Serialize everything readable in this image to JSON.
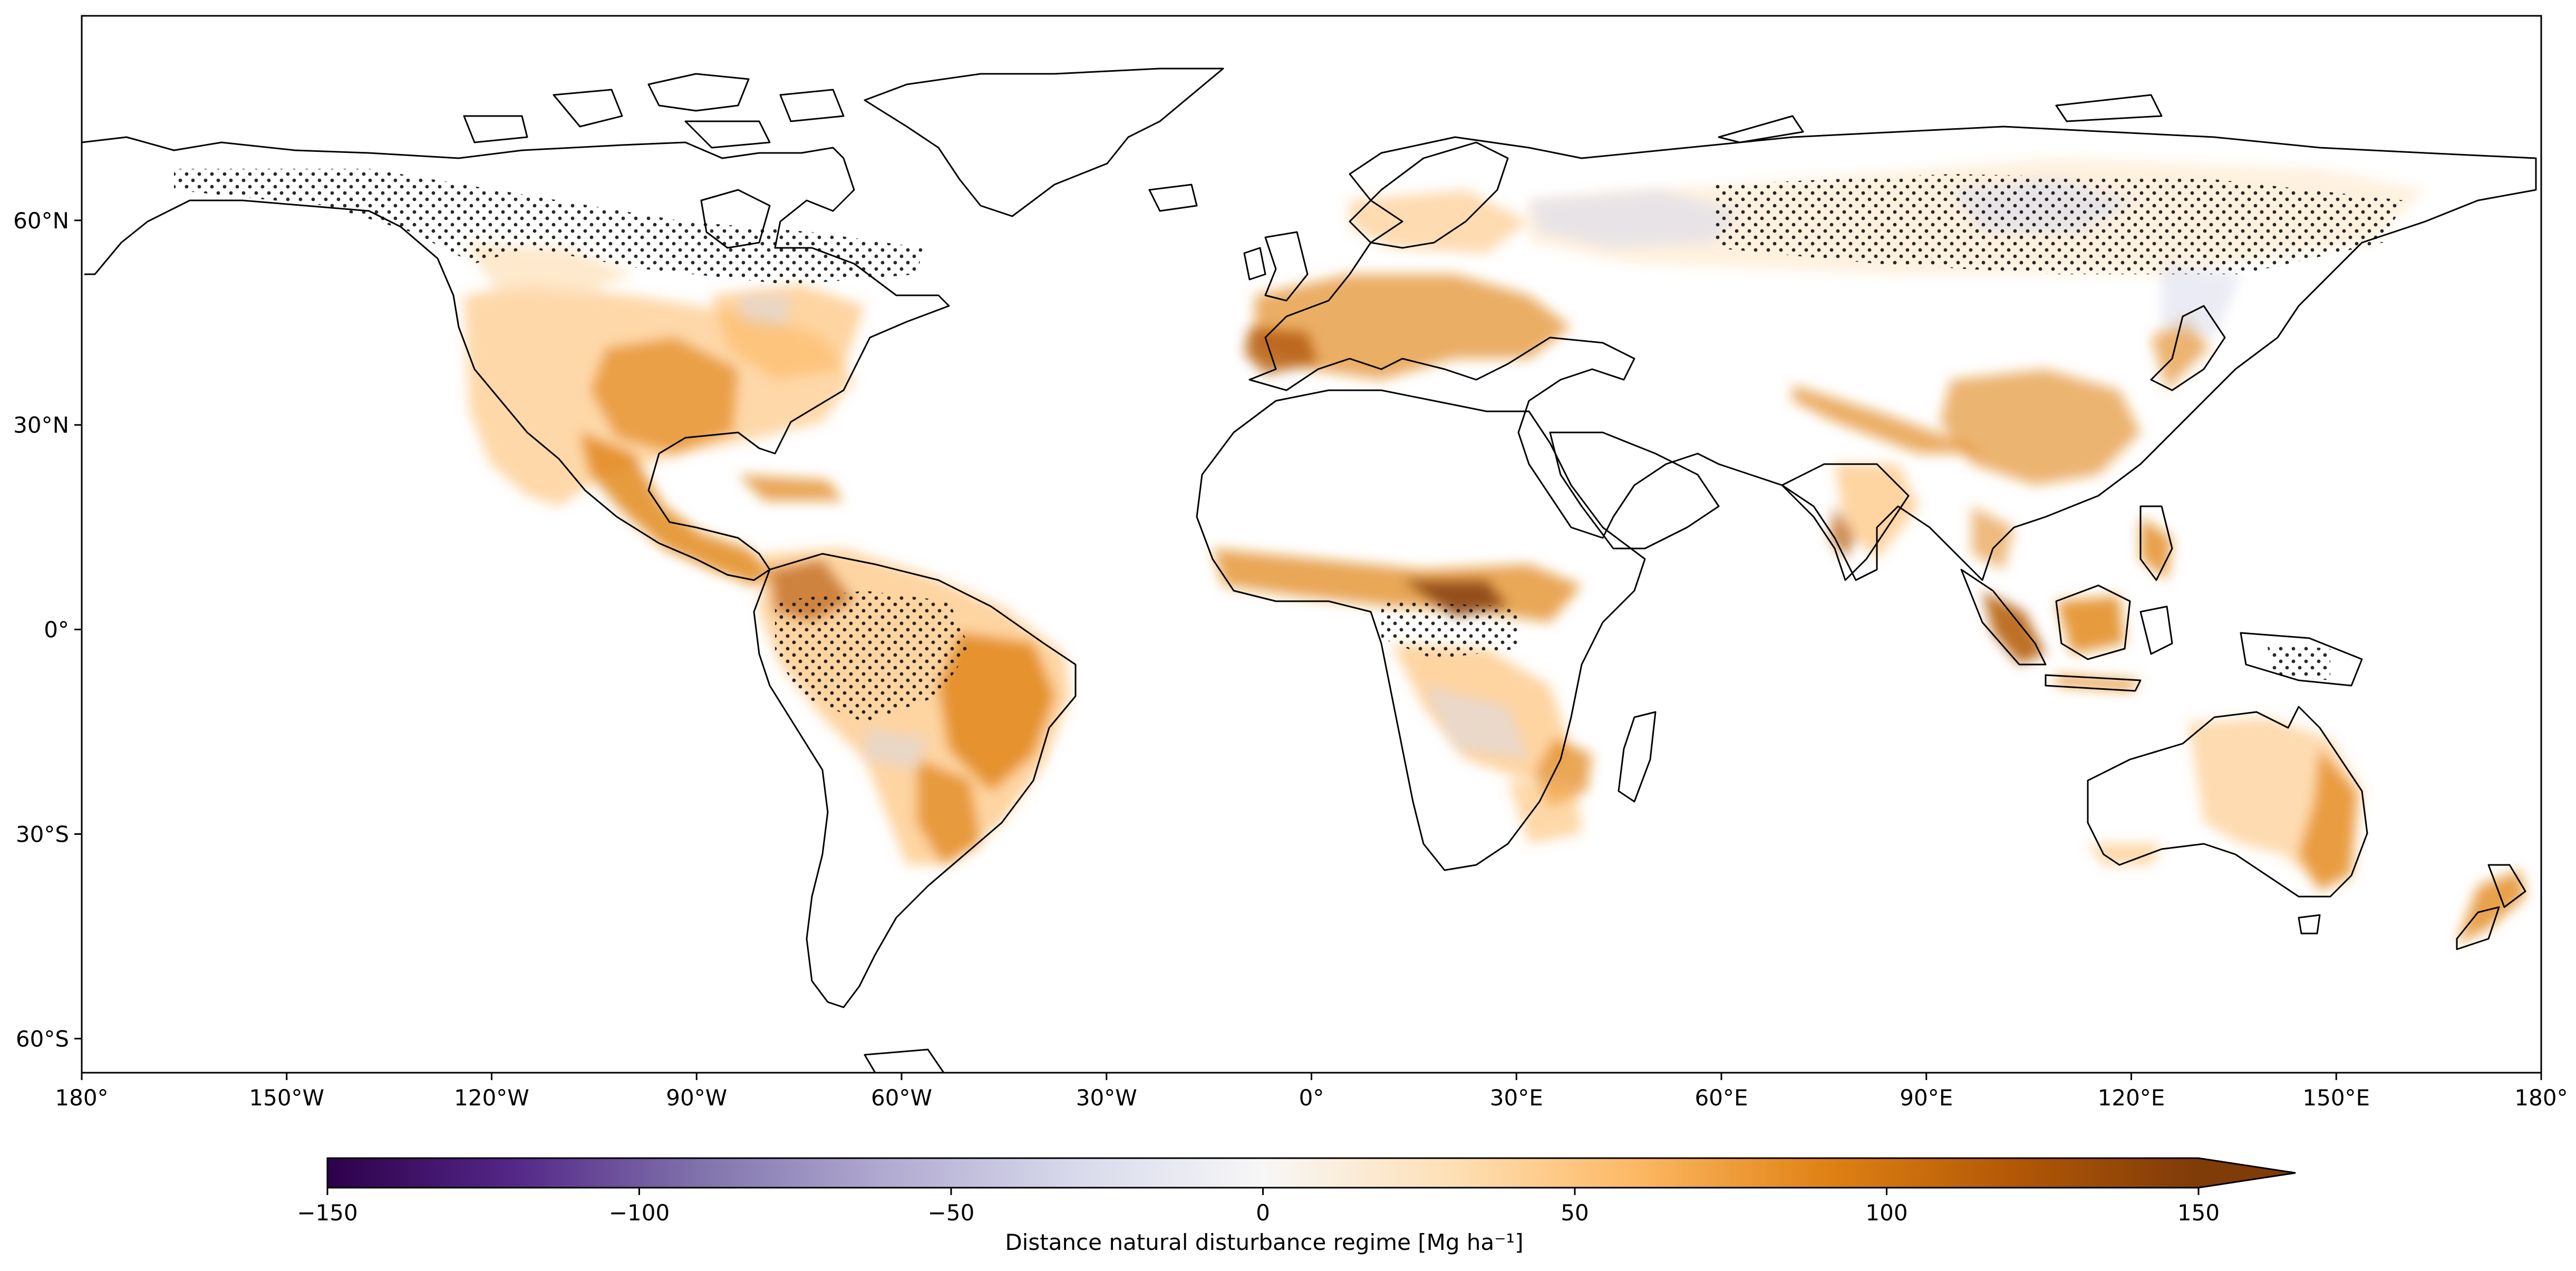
{
  "map": {
    "projection": "PlateCarree",
    "lon_ticks": [
      "180°",
      "150°W",
      "120°W",
      "90°W",
      "60°W",
      "30°W",
      "0°",
      "30°E",
      "60°E",
      "90°E",
      "120°E",
      "150°E",
      "180°"
    ],
    "lat_ticks": [
      "60°N",
      "30°N",
      "0°",
      "30°S",
      "60°S"
    ],
    "lon_values": [
      -180,
      -150,
      -120,
      -90,
      -60,
      -30,
      0,
      30,
      60,
      90,
      120,
      150,
      180
    ],
    "lat_values": [
      60,
      30,
      0,
      -30,
      -60
    ],
    "lat_range": [
      -65,
      90
    ],
    "lon_range": [
      -180,
      180
    ],
    "hatching": "stippled dots over regions of low agreement (boreal North America, boreal Eurasia, Amazon, Congo, New Guinea)"
  },
  "colorbar": {
    "label": "Distance natural disturbance regime [Mg ha⁻¹]",
    "ticks": [
      "−150",
      "−100",
      "−50",
      "0",
      "50",
      "100",
      "150"
    ],
    "tick_values": [
      -150,
      -100,
      -50,
      0,
      50,
      100,
      150
    ],
    "range": [
      -150,
      150
    ],
    "extend": "max",
    "colormap": "PuOr_r",
    "colors": [
      "#2d004b",
      "#542788",
      "#8073ac",
      "#b2abd2",
      "#d8daeb",
      "#f7f7f7",
      "#fee0b6",
      "#fdb863",
      "#e08214",
      "#b35806",
      "#7f3b08"
    ]
  }
}
